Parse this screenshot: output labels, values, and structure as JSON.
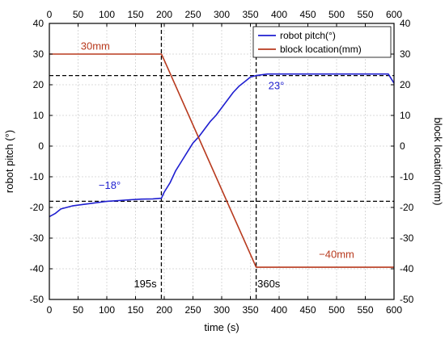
{
  "chart_data": {
    "type": "line",
    "xlabel": "time (s)",
    "ylabel_left": "robot pitch (°)",
    "ylabel_right": "block location(mm)",
    "xlim": [
      0,
      600
    ],
    "ylim": [
      -50,
      40
    ],
    "xticks": [
      0,
      50,
      100,
      150,
      200,
      250,
      300,
      350,
      400,
      450,
      500,
      550,
      600
    ],
    "yticks": [
      -50,
      -40,
      -30,
      -20,
      -10,
      0,
      10,
      20,
      30,
      40
    ],
    "grid": true,
    "legend_position": "top-right",
    "series": [
      {
        "name": "robot pitch(°)",
        "color": "#1f1fd0",
        "x": [
          0,
          10,
          20,
          40,
          60,
          80,
          100,
          120,
          140,
          160,
          180,
          195,
          200,
          210,
          220,
          230,
          240,
          250,
          260,
          270,
          280,
          290,
          300,
          310,
          320,
          330,
          340,
          350,
          360,
          380,
          400,
          450,
          500,
          550,
          590,
          600
        ],
        "y": [
          -23,
          -22,
          -20.5,
          -19.5,
          -19,
          -18.5,
          -18,
          -17.8,
          -17.5,
          -17.3,
          -17.2,
          -17,
          -15,
          -12,
          -8,
          -5,
          -2,
          1,
          3,
          5.5,
          8,
          10,
          12.5,
          15,
          17.5,
          19.5,
          21,
          22.5,
          23,
          23.5,
          23.5,
          23.5,
          23.5,
          23.5,
          23.5,
          20.5
        ]
      },
      {
        "name": "block location(mm)",
        "color": "#b83a1e",
        "x": [
          0,
          100,
          195,
          200,
          360,
          400,
          500,
          600
        ],
        "y": [
          30,
          30,
          30,
          28,
          -39.5,
          -39.5,
          -39.5,
          -39.5
        ]
      }
    ],
    "reference_lines": [
      {
        "orientation": "vertical",
        "x": 195
      },
      {
        "orientation": "vertical",
        "x": 360
      },
      {
        "orientation": "horizontal",
        "y": 23
      },
      {
        "orientation": "horizontal",
        "y": -18
      }
    ],
    "annotations": [
      {
        "text": "30mm",
        "x": 80,
        "y": 31.5,
        "color": "#b83a1e"
      },
      {
        "text": "−18°",
        "x": 105,
        "y": -14,
        "color": "#1f1fd0"
      },
      {
        "text": "23°",
        "x": 395,
        "y": 18.5,
        "color": "#1f1fd0"
      },
      {
        "text": "−40mm",
        "x": 500,
        "y": -36.5,
        "color": "#b83a1e"
      },
      {
        "text": "195s",
        "x": 167,
        "y": -46,
        "color": "#000000"
      },
      {
        "text": "360s",
        "x": 382,
        "y": -46,
        "color": "#000000"
      }
    ]
  }
}
